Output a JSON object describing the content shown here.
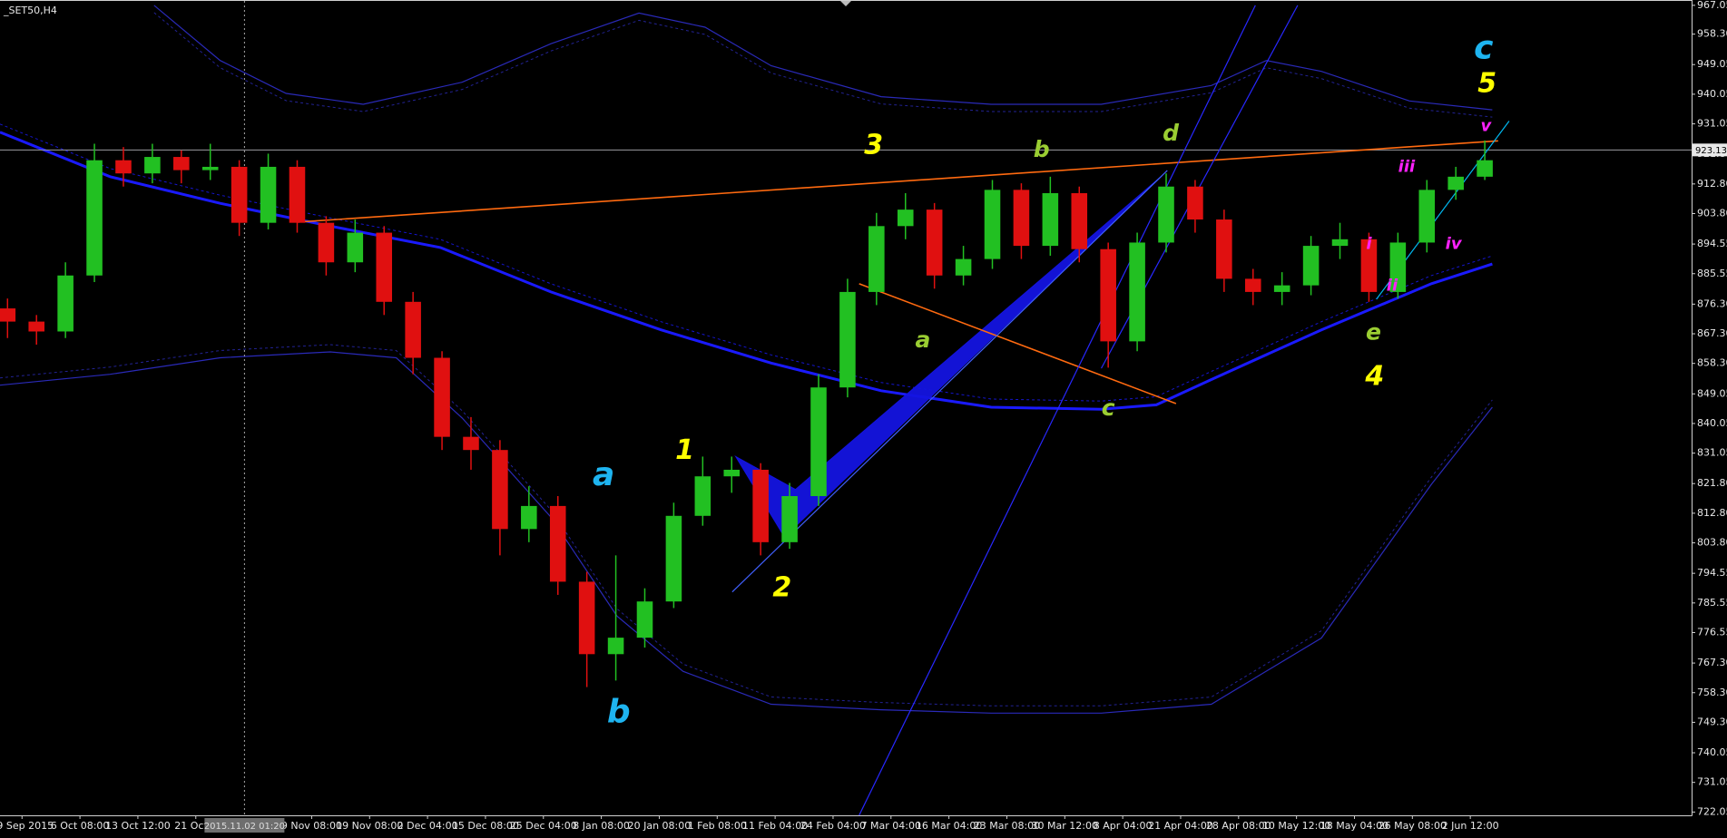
{
  "chart_data": {
    "type": "candlestick",
    "title": "_SET50,H4",
    "xlim": [
      -0.38,
      28.82
    ],
    "ylim": [
      721.05,
      968.39
    ],
    "xticks": [
      {
        "value": 0,
        "label": "29 Sep 2015"
      },
      {
        "value": 1,
        "label": "6 Oct 08:00"
      },
      {
        "value": 2,
        "label": "13 Oct 12:00"
      },
      {
        "value": 3,
        "label": "21 Oct 0"
      },
      {
        "value": 5,
        "label": "9 Nov 08:00"
      },
      {
        "value": 6,
        "label": "19 Nov 08:00"
      },
      {
        "value": 7,
        "label": "2 Dec 04:00"
      },
      {
        "value": 8,
        "label": "15 Dec 08:00"
      },
      {
        "value": 9,
        "label": "25 Dec 04:00"
      },
      {
        "value": 10,
        "label": "8 Jan 08:00"
      },
      {
        "value": 11,
        "label": "20 Jan 08:00"
      },
      {
        "value": 12,
        "label": "1 Feb 08:00"
      },
      {
        "value": 13,
        "label": "11 Feb 04:00"
      },
      {
        "value": 14,
        "label": "24 Feb 04:00"
      },
      {
        "value": 15,
        "label": "7 Mar 04:00"
      },
      {
        "value": 16,
        "label": "16 Mar 04:00"
      },
      {
        "value": 17,
        "label": "23 Mar 08:00"
      },
      {
        "value": 18,
        "label": "30 Mar 12:00"
      },
      {
        "value": 19,
        "label": "8 Apr 04:00"
      },
      {
        "value": 20,
        "label": "21 Apr 04:00"
      },
      {
        "value": 21,
        "label": "28 Apr 08:00"
      },
      {
        "value": 22,
        "label": "10 May 12:00"
      },
      {
        "value": 23,
        "label": "18 May 04:00"
      },
      {
        "value": 24,
        "label": "26 May 08:00"
      },
      {
        "value": 25,
        "label": "2 Jun 12:00"
      }
    ],
    "yticks": [
      967.05,
      {
        "value": 958.3,
        "label": "958.30"
      },
      949.05,
      940.05,
      931.05,
      {
        "value": 921.8,
        "label": "921.80"
      },
      {
        "value": 912.8,
        "label": "912.80"
      },
      {
        "value": 903.8,
        "label": "903.80"
      },
      894.55,
      885.55,
      {
        "value": 876.3,
        "label": "876.30"
      },
      {
        "value": 867.3,
        "label": "867.30"
      },
      {
        "value": 858.3,
        "label": "858.30"
      },
      849.05,
      840.05,
      831.05,
      {
        "value": 821.8,
        "label": "821.80"
      },
      {
        "value": 812.8,
        "label": "812.80"
      },
      {
        "value": 803.8,
        "label": "803.80"
      },
      794.55,
      785.55,
      776.55,
      {
        "value": 767.3,
        "label": "767.30"
      },
      {
        "value": 758.3,
        "label": "758.30"
      },
      {
        "value": 749.3,
        "label": "749.30"
      },
      740.05,
      731.05,
      722.05
    ],
    "price_line": 923.13,
    "crosshair": {
      "x": 3.84,
      "label": "2015.11.02 01:20"
    },
    "up_color": "#22c022",
    "down_color": "#e01010",
    "x": [
      -0.25,
      0.25,
      0.75,
      1.25,
      1.75,
      2.25,
      2.75,
      3.25,
      3.75,
      4.25,
      4.75,
      5.25,
      5.75,
      6.25,
      6.75,
      7.25,
      7.75,
      8.25,
      8.75,
      9.25,
      9.75,
      10.25,
      10.75,
      11.25,
      11.75,
      12.25,
      12.75,
      13.25,
      13.75,
      14.25,
      14.75,
      15.25,
      15.75,
      16.25,
      16.75,
      17.25,
      17.75,
      18.25,
      18.75,
      19.25,
      19.75,
      20.25,
      20.75,
      21.25,
      21.75,
      22.25,
      22.75,
      23.25,
      23.75,
      24.25,
      24.75,
      25.25
    ],
    "open": [
      875,
      871,
      868,
      885,
      920,
      916,
      921,
      917,
      918,
      901,
      918,
      901,
      889,
      898,
      877,
      860,
      836,
      832,
      808,
      815,
      792,
      770,
      775,
      786,
      812,
      824,
      826,
      804,
      818,
      851,
      880,
      900,
      905,
      885,
      890,
      911,
      894,
      910,
      893,
      865,
      895,
      912,
      902,
      884,
      880,
      882,
      894,
      896,
      880,
      895,
      911,
      915
    ],
    "high": [
      878,
      873,
      889,
      925,
      924,
      925,
      923,
      925,
      920,
      922,
      920,
      903,
      902,
      900,
      880,
      862,
      842,
      835,
      821,
      818,
      795,
      800,
      790,
      816,
      830,
      830,
      828,
      822,
      855,
      884,
      904,
      910,
      907,
      894,
      914,
      913,
      915,
      912,
      895,
      898,
      916,
      914,
      905,
      887,
      886,
      897,
      901,
      898,
      898,
      914,
      918,
      926
    ],
    "low": [
      866,
      864,
      866,
      883,
      912,
      913,
      913,
      914,
      897,
      899,
      898,
      885,
      886,
      873,
      855,
      832,
      826,
      800,
      804,
      788,
      760,
      762,
      772,
      784,
      809,
      819,
      800,
      802,
      815,
      848,
      876,
      896,
      881,
      882,
      887,
      890,
      891,
      889,
      857,
      862,
      892,
      898,
      880,
      876,
      876,
      879,
      890,
      877,
      878,
      892,
      908,
      914
    ],
    "close": [
      871,
      868,
      885,
      920,
      916,
      921,
      917,
      918,
      901,
      918,
      901,
      889,
      898,
      877,
      860,
      836,
      832,
      808,
      815,
      792,
      770,
      775,
      786,
      812,
      824,
      826,
      804,
      818,
      851,
      880,
      900,
      905,
      885,
      890,
      911,
      894,
      910,
      893,
      865,
      895,
      912,
      902,
      884,
      880,
      882,
      894,
      896,
      880,
      895,
      911,
      915,
      920
    ],
    "bands": [
      {
        "color": "#2a2ab8",
        "x": [
          2.28,
          3.42,
          4.56,
          5.89,
          7.6,
          9.13,
          10.65,
          11.79,
          12.93,
          14.83,
          16.73,
          18.63,
          20.53,
          21.48,
          22.43,
          23.95,
          25.38
        ],
        "values": [
          967.05,
          950.3,
          940.3,
          937,
          943.7,
          955.4,
          964.7,
          960.4,
          948.7,
          939.3,
          937,
          937,
          942.7,
          950.3,
          947,
          938,
          935.3
        ]
      },
      {
        "color": "#1a1aff",
        "x": [
          -0.38,
          1.52,
          3.42,
          5.32,
          7.22,
          9.13,
          11.03,
          12.93,
          14.83,
          16.73,
          18.63,
          19.58,
          20.53,
          22.43,
          24.33,
          25.38
        ],
        "values": [
          928.5,
          915,
          906.9,
          900,
          893.5,
          880,
          868.5,
          858.4,
          850,
          845,
          844.4,
          845.7,
          853.4,
          868.5,
          882.5,
          888.5
        ]
      },
      {
        "color": "#2a2ab8",
        "x": [
          -0.38,
          1.52,
          3.42,
          5.32,
          6.46,
          7.6,
          9.13,
          10.27,
          11.41,
          12.93,
          14.83,
          16.73,
          18.63,
          20.53,
          22.43,
          24.33,
          25.38
        ],
        "values": [
          851.7,
          855,
          860,
          861.8,
          860,
          841.7,
          811.6,
          781.6,
          764.8,
          754.8,
          753.1,
          752.1,
          752.1,
          754.8,
          774.9,
          821.6,
          845
        ]
      }
    ],
    "trendlines": [
      {
        "color": "#ff6a10",
        "x": [
          4.75,
          25.48
        ],
        "y": [
          901.2,
          925.9
        ]
      },
      {
        "color": "#ff6a10",
        "x": [
          14.45,
          19.92
        ],
        "y": [
          882.5,
          846.1
        ]
      },
      {
        "color": "#2828ff",
        "x": [
          14.45,
          21.29
        ],
        "y": [
          721.05,
          967.05
        ]
      },
      {
        "color": "#2828ff",
        "x": [
          18.63,
          22.02
        ],
        "y": [
          856.8,
          967.05
        ]
      },
      {
        "color": "#4060ff",
        "x": [
          12.26,
          19.77
        ],
        "y": [
          788.9,
          916.9
        ]
      },
      {
        "color": "#00b8f0",
        "x": [
          23.38,
          25.67
        ],
        "y": [
          877.8,
          931.9
        ]
      }
    ],
    "shape": {
      "color": "#1414e0",
      "x": [
        12.32,
        13.35,
        19.68,
        13.16
      ],
      "y": [
        830.0,
        820.0,
        915.3,
        805.6
      ]
    },
    "wave_labels": [
      {
        "color": "#1eb4f0",
        "items": [
          {
            "text": "a",
            "x": 10.04,
            "y": 824
          },
          {
            "text": "b",
            "x": 10.3,
            "y": 752.1
          },
          {
            "text": "c",
            "x": 25.23,
            "y": 953.7
          }
        ]
      },
      {
        "color": "#ffff00",
        "items": [
          {
            "text": "1",
            "x": 11.44,
            "y": 831.7
          },
          {
            "text": "2",
            "x": 13.12,
            "y": 789.9
          },
          {
            "text": "3",
            "x": 14.7,
            "y": 924.3
          },
          {
            "text": "4",
            "x": 23.35,
            "y": 854.1
          },
          {
            "text": "5",
            "x": 25.29,
            "y": 943
          }
        ]
      },
      {
        "color": "#9acd32",
        "items": [
          {
            "text": "a",
            "x": 15.55,
            "y": 865.1
          },
          {
            "text": "b",
            "x": 17.6,
            "y": 922.9
          },
          {
            "text": "c",
            "x": 18.75,
            "y": 844.4
          },
          {
            "text": "d",
            "x": 19.83,
            "y": 927.9
          },
          {
            "text": "e",
            "x": 23.33,
            "y": 867.4
          }
        ]
      },
      {
        "color": "#ff20ff",
        "items": [
          {
            "text": "i",
            "x": 23.25,
            "y": 894.5
          },
          {
            "text": "ii",
            "x": 23.65,
            "y": 881.8
          },
          {
            "text": "iii",
            "x": 23.9,
            "y": 917.9
          },
          {
            "text": "iv",
            "x": 24.71,
            "y": 894.5
          },
          {
            "text": "v",
            "x": 25.27,
            "y": 930.3
          }
        ]
      }
    ]
  }
}
